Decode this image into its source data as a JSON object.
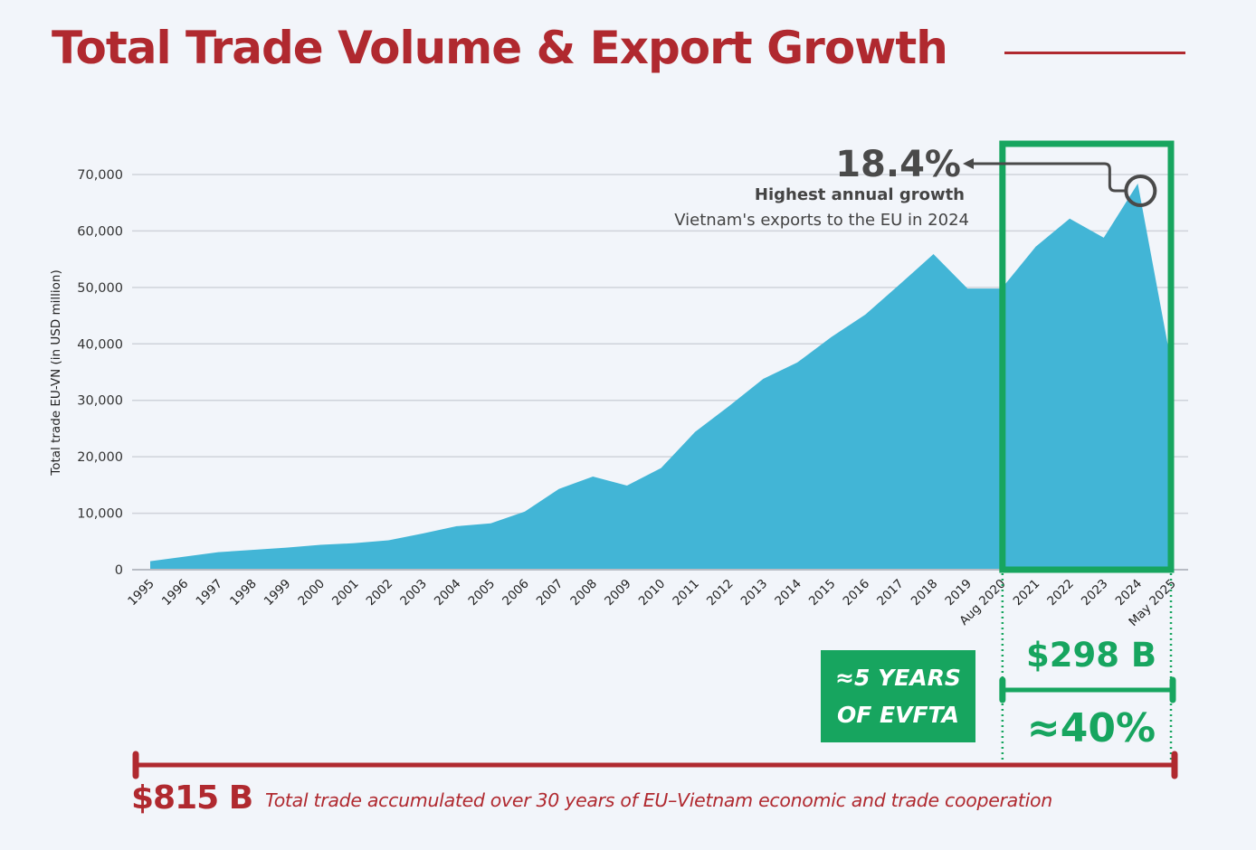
{
  "header": {
    "title": "Total Trade Volume & Export Growth"
  },
  "chart_data": {
    "type": "area",
    "title": "Total Trade Volume & Export Growth",
    "xlabel": "",
    "ylabel": "Total trade EU-VN (in USD million)",
    "ylim": [
      0,
      70000
    ],
    "yticks": [
      0,
      10000,
      20000,
      30000,
      40000,
      50000,
      60000,
      70000
    ],
    "ytick_labels": [
      "0",
      "10,000",
      "20,000",
      "30,000",
      "40,000",
      "50,000",
      "60,000",
      "70,000"
    ],
    "grid": true,
    "categories": [
      "1995",
      "1996",
      "1997",
      "1998",
      "1999",
      "2000",
      "2001",
      "2002",
      "2003",
      "2004",
      "2005",
      "2006",
      "2007",
      "2008",
      "2009",
      "2010",
      "2011",
      "2012",
      "2013",
      "2014",
      "2015",
      "2016",
      "2017",
      "2018",
      "2019",
      "Aug 2020",
      "2021",
      "2022",
      "2023",
      "2024",
      "May 2025"
    ],
    "values": [
      1500,
      2300,
      3100,
      3500,
      3900,
      4400,
      4700,
      5200,
      6400,
      7700,
      8200,
      10300,
      14300,
      16500,
      14900,
      18000,
      24400,
      29000,
      33800,
      36700,
      41200,
      45200,
      50500,
      55900,
      49800,
      49800,
      57200,
      62200,
      58800,
      68400,
      36000
    ],
    "series_color": "#42b5d6",
    "highlight_range": [
      "Aug 2020",
      "May 2025"
    ],
    "highlight_color": "#17a55f",
    "annotation": {
      "value": "18.4%",
      "headline": "Highest annual growth",
      "description": "Vietnam's exports to the EU in 2024",
      "points_to": "2024"
    }
  },
  "evfta": {
    "badge_line1": "≈5 YEARS",
    "badge_line2": "OF EVFTA",
    "amount": "$298 B",
    "share": "≈40%"
  },
  "total": {
    "amount": "$815 B",
    "description": "Total trade accumulated over 30 years of EU–Vietnam economic and trade cooperation"
  },
  "colors": {
    "brand_red": "#b0292f",
    "green": "#17a55f",
    "area_blue": "#42b5d6",
    "background": "#f2f5fa"
  }
}
